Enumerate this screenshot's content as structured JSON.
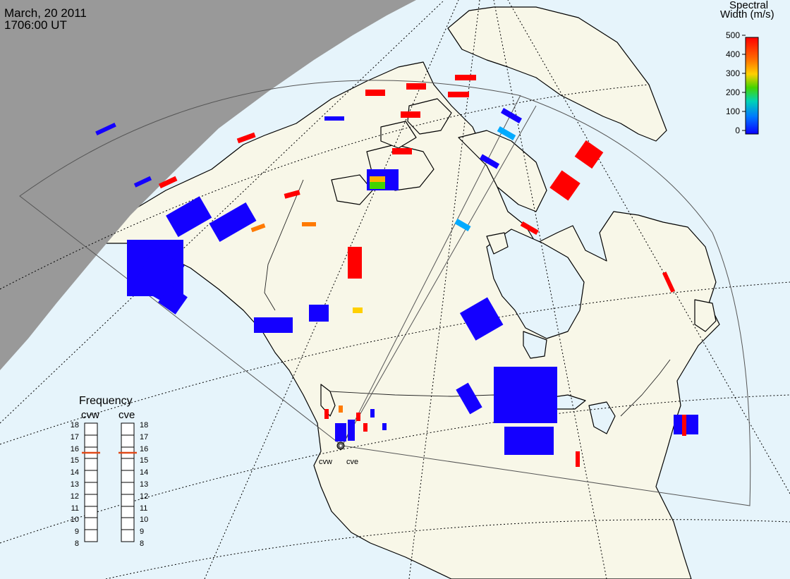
{
  "header": {
    "date": "March, 20 2011",
    "time": "1706:00 UT"
  },
  "colorbar": {
    "title_line1": "Spectral",
    "title_line2": "Width (m/s)",
    "ticks": [
      "500",
      "400",
      "300",
      "200",
      "100",
      "0"
    ],
    "gradient": [
      "#ff0000",
      "#ff6a00",
      "#ffd000",
      "#43d400",
      "#00d3b6",
      "#0078ff",
      "#0a00ff"
    ]
  },
  "frequency_panel": {
    "title": "Frequency",
    "radars": [
      {
        "label": "cvw",
        "selected_mhz": 15.5
      },
      {
        "label": "cve",
        "selected_mhz": 15.5
      }
    ],
    "ticks": [
      "18",
      "17",
      "16",
      "15",
      "14",
      "13",
      "12",
      "11",
      "10",
      "9",
      "8"
    ]
  },
  "sites": [
    "cvw",
    "cve"
  ],
  "colors": {
    "ocean": "#e6f4fb",
    "land": "#f8f7e8",
    "night": "#999999",
    "low_width": "#1400ff",
    "high_width": "#ff0000",
    "mid_width": "#ff7a00"
  }
}
